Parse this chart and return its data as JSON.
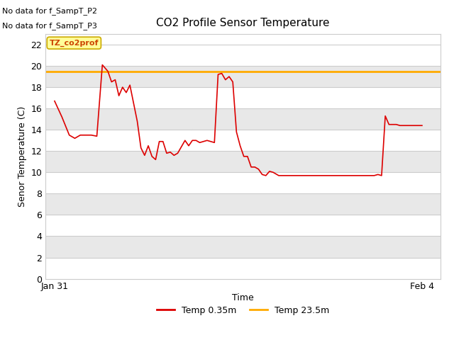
{
  "title": "CO2 Profile Sensor Temperature",
  "ylabel": "Senor Temperature (C)",
  "xlabel": "Time",
  "no_data_text_line1": "No data for f_SampT_P2",
  "no_data_text_line2": "No data for f_SampT_P3",
  "legend_box_label": "TZ_co2prof",
  "ylim": [
    0,
    23
  ],
  "yticks": [
    0,
    2,
    4,
    6,
    8,
    10,
    12,
    14,
    16,
    18,
    20,
    22
  ],
  "xticklabels": [
    "Jan 31",
    "Feb 4"
  ],
  "figure_bg_color": "#ffffff",
  "plot_bg_color": "#ffffff",
  "band_colors": [
    "#ffffff",
    "#e8e8e8"
  ],
  "line_red_color": "#dd0000",
  "line_orange_color": "#ffaa00",
  "legend_items": [
    "Temp 0.35m",
    "Temp 23.5m"
  ],
  "orange_line_value": 19.5,
  "red_x_pts": [
    0.0,
    0.02,
    0.04,
    0.055,
    0.07,
    0.085,
    0.1,
    0.115,
    0.13,
    0.145,
    0.155,
    0.165,
    0.175,
    0.185,
    0.195,
    0.205,
    0.215,
    0.225,
    0.235,
    0.245,
    0.255,
    0.265,
    0.275,
    0.285,
    0.295,
    0.305,
    0.315,
    0.325,
    0.335,
    0.345,
    0.355,
    0.365,
    0.375,
    0.385,
    0.395,
    0.405,
    0.415,
    0.425,
    0.435,
    0.445,
    0.455,
    0.465,
    0.475,
    0.485,
    0.495,
    0.505,
    0.515,
    0.525,
    0.535,
    0.545,
    0.555,
    0.565,
    0.575,
    0.585,
    0.595,
    0.61,
    0.63,
    0.65,
    0.67,
    0.69,
    0.71,
    0.73,
    0.75,
    0.77,
    0.79,
    0.81,
    0.83,
    0.85,
    0.87,
    0.88,
    0.89,
    0.9,
    0.91,
    0.92,
    0.93,
    0.94,
    0.95,
    0.96,
    0.97,
    0.98,
    1.0
  ],
  "red_y_pts": [
    16.7,
    15.2,
    13.5,
    13.2,
    13.5,
    13.5,
    13.5,
    13.4,
    20.1,
    19.5,
    18.5,
    18.7,
    17.2,
    18.0,
    17.5,
    18.2,
    16.5,
    14.8,
    12.3,
    11.6,
    12.5,
    11.5,
    11.2,
    12.9,
    12.9,
    11.8,
    11.9,
    11.6,
    11.8,
    12.4,
    13.0,
    12.5,
    13.0,
    13.0,
    12.8,
    12.9,
    13.0,
    12.9,
    12.8,
    19.2,
    19.3,
    18.7,
    19.0,
    18.5,
    13.8,
    12.5,
    11.5,
    11.5,
    10.5,
    10.5,
    10.3,
    9.8,
    9.7,
    10.1,
    10.0,
    9.7,
    9.7,
    9.7,
    9.7,
    9.7,
    9.7,
    9.7,
    9.7,
    9.7,
    9.7,
    9.7,
    9.7,
    9.7,
    9.7,
    9.8,
    9.7,
    15.3,
    14.5,
    14.5,
    14.5,
    14.4,
    14.4,
    14.4,
    14.4,
    14.4,
    14.4
  ]
}
